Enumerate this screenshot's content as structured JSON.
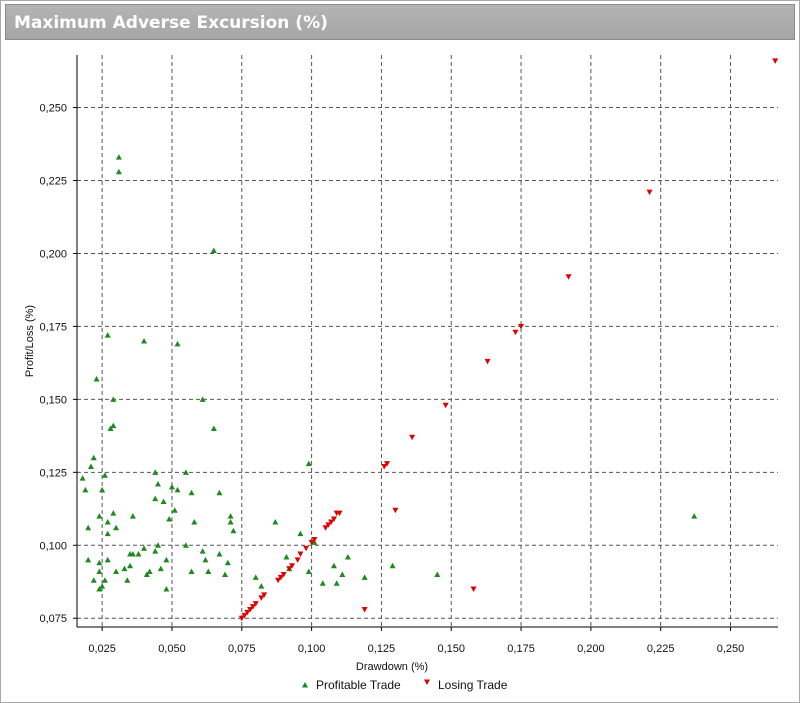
{
  "chart_data": {
    "type": "scatter",
    "title": "Maximum Adverse Excursion (%)",
    "xlabel": "Drawdown (%)",
    "ylabel": "Profit/Loss (%)",
    "xlim": [
      0.016,
      0.267
    ],
    "ylim": [
      0.072,
      0.268
    ],
    "x_ticks": [
      0.025,
      0.05,
      0.075,
      0.1,
      0.125,
      0.15,
      0.175,
      0.2,
      0.225,
      0.25
    ],
    "x_tick_labels": [
      "0,025",
      "0,050",
      "0,075",
      "0,100",
      "0,125",
      "0,150",
      "0,175",
      "0,200",
      "0,225",
      "0,250"
    ],
    "y_ticks": [
      0.075,
      0.1,
      0.125,
      0.15,
      0.175,
      0.2,
      0.225,
      0.25
    ],
    "y_tick_labels": [
      "0,075",
      "0,100",
      "0,125",
      "0,150",
      "0,175",
      "0,200",
      "0,225",
      "0,250"
    ],
    "grid": true,
    "legend_position": "bottom-center",
    "series": [
      {
        "name": "Profitable Trade",
        "marker": "triangle-up",
        "color": "#1e8a1e",
        "points": [
          [
            0.031,
            0.233
          ],
          [
            0.031,
            0.228
          ],
          [
            0.065,
            0.201
          ],
          [
            0.027,
            0.172
          ],
          [
            0.04,
            0.17
          ],
          [
            0.052,
            0.169
          ],
          [
            0.023,
            0.157
          ],
          [
            0.029,
            0.15
          ],
          [
            0.061,
            0.15
          ],
          [
            0.028,
            0.14
          ],
          [
            0.029,
            0.141
          ],
          [
            0.065,
            0.14
          ],
          [
            0.022,
            0.13
          ],
          [
            0.021,
            0.127
          ],
          [
            0.026,
            0.124
          ],
          [
            0.018,
            0.123
          ],
          [
            0.044,
            0.125
          ],
          [
            0.055,
            0.125
          ],
          [
            0.099,
            0.128
          ],
          [
            0.045,
            0.121
          ],
          [
            0.019,
            0.119
          ],
          [
            0.025,
            0.119
          ],
          [
            0.05,
            0.12
          ],
          [
            0.052,
            0.119
          ],
          [
            0.057,
            0.118
          ],
          [
            0.067,
            0.118
          ],
          [
            0.044,
            0.116
          ],
          [
            0.047,
            0.115
          ],
          [
            0.051,
            0.112
          ],
          [
            0.071,
            0.11
          ],
          [
            0.071,
            0.108
          ],
          [
            0.029,
            0.111
          ],
          [
            0.024,
            0.11
          ],
          [
            0.036,
            0.11
          ],
          [
            0.027,
            0.108
          ],
          [
            0.049,
            0.109
          ],
          [
            0.058,
            0.108
          ],
          [
            0.087,
            0.108
          ],
          [
            0.237,
            0.11
          ],
          [
            0.02,
            0.106
          ],
          [
            0.03,
            0.106
          ],
          [
            0.072,
            0.105
          ],
          [
            0.027,
            0.104
          ],
          [
            0.096,
            0.104
          ],
          [
            0.045,
            0.1
          ],
          [
            0.055,
            0.1
          ],
          [
            0.101,
            0.101
          ],
          [
            0.04,
            0.099
          ],
          [
            0.061,
            0.098
          ],
          [
            0.044,
            0.098
          ],
          [
            0.036,
            0.097
          ],
          [
            0.035,
            0.097
          ],
          [
            0.067,
            0.097
          ],
          [
            0.038,
            0.097
          ],
          [
            0.091,
            0.096
          ],
          [
            0.113,
            0.096
          ],
          [
            0.02,
            0.095
          ],
          [
            0.024,
            0.094
          ],
          [
            0.027,
            0.095
          ],
          [
            0.048,
            0.095
          ],
          [
            0.062,
            0.095
          ],
          [
            0.07,
            0.094
          ],
          [
            0.035,
            0.093
          ],
          [
            0.033,
            0.092
          ],
          [
            0.046,
            0.092
          ],
          [
            0.092,
            0.092
          ],
          [
            0.108,
            0.093
          ],
          [
            0.129,
            0.093
          ],
          [
            0.024,
            0.091
          ],
          [
            0.03,
            0.091
          ],
          [
            0.042,
            0.091
          ],
          [
            0.041,
            0.09
          ],
          [
            0.057,
            0.091
          ],
          [
            0.063,
            0.091
          ],
          [
            0.069,
            0.09
          ],
          [
            0.099,
            0.091
          ],
          [
            0.111,
            0.09
          ],
          [
            0.119,
            0.089
          ],
          [
            0.145,
            0.09
          ],
          [
            0.08,
            0.089
          ],
          [
            0.022,
            0.088
          ],
          [
            0.026,
            0.088
          ],
          [
            0.025,
            0.086
          ],
          [
            0.034,
            0.088
          ],
          [
            0.104,
            0.087
          ],
          [
            0.109,
            0.087
          ],
          [
            0.082,
            0.086
          ],
          [
            0.024,
            0.085
          ],
          [
            0.048,
            0.085
          ]
        ]
      },
      {
        "name": "Losing Trade",
        "marker": "triangle-down",
        "color": "#e00000",
        "points": [
          [
            0.266,
            0.266
          ],
          [
            0.221,
            0.221
          ],
          [
            0.192,
            0.192
          ],
          [
            0.175,
            0.175
          ],
          [
            0.173,
            0.173
          ],
          [
            0.163,
            0.163
          ],
          [
            0.148,
            0.148
          ],
          [
            0.136,
            0.137
          ],
          [
            0.127,
            0.128
          ],
          [
            0.126,
            0.127
          ],
          [
            0.13,
            0.112
          ],
          [
            0.11,
            0.111
          ],
          [
            0.109,
            0.111
          ],
          [
            0.108,
            0.109
          ],
          [
            0.107,
            0.108
          ],
          [
            0.106,
            0.107
          ],
          [
            0.105,
            0.106
          ],
          [
            0.101,
            0.102
          ],
          [
            0.1,
            0.101
          ],
          [
            0.098,
            0.099
          ],
          [
            0.096,
            0.097
          ],
          [
            0.095,
            0.095
          ],
          [
            0.093,
            0.093
          ],
          [
            0.092,
            0.092
          ],
          [
            0.09,
            0.09
          ],
          [
            0.089,
            0.089
          ],
          [
            0.088,
            0.088
          ],
          [
            0.083,
            0.083
          ],
          [
            0.082,
            0.082
          ],
          [
            0.08,
            0.08
          ],
          [
            0.079,
            0.079
          ],
          [
            0.078,
            0.078
          ],
          [
            0.077,
            0.077
          ],
          [
            0.076,
            0.076
          ],
          [
            0.075,
            0.075
          ],
          [
            0.119,
            0.078
          ],
          [
            0.158,
            0.085
          ]
        ]
      }
    ]
  }
}
